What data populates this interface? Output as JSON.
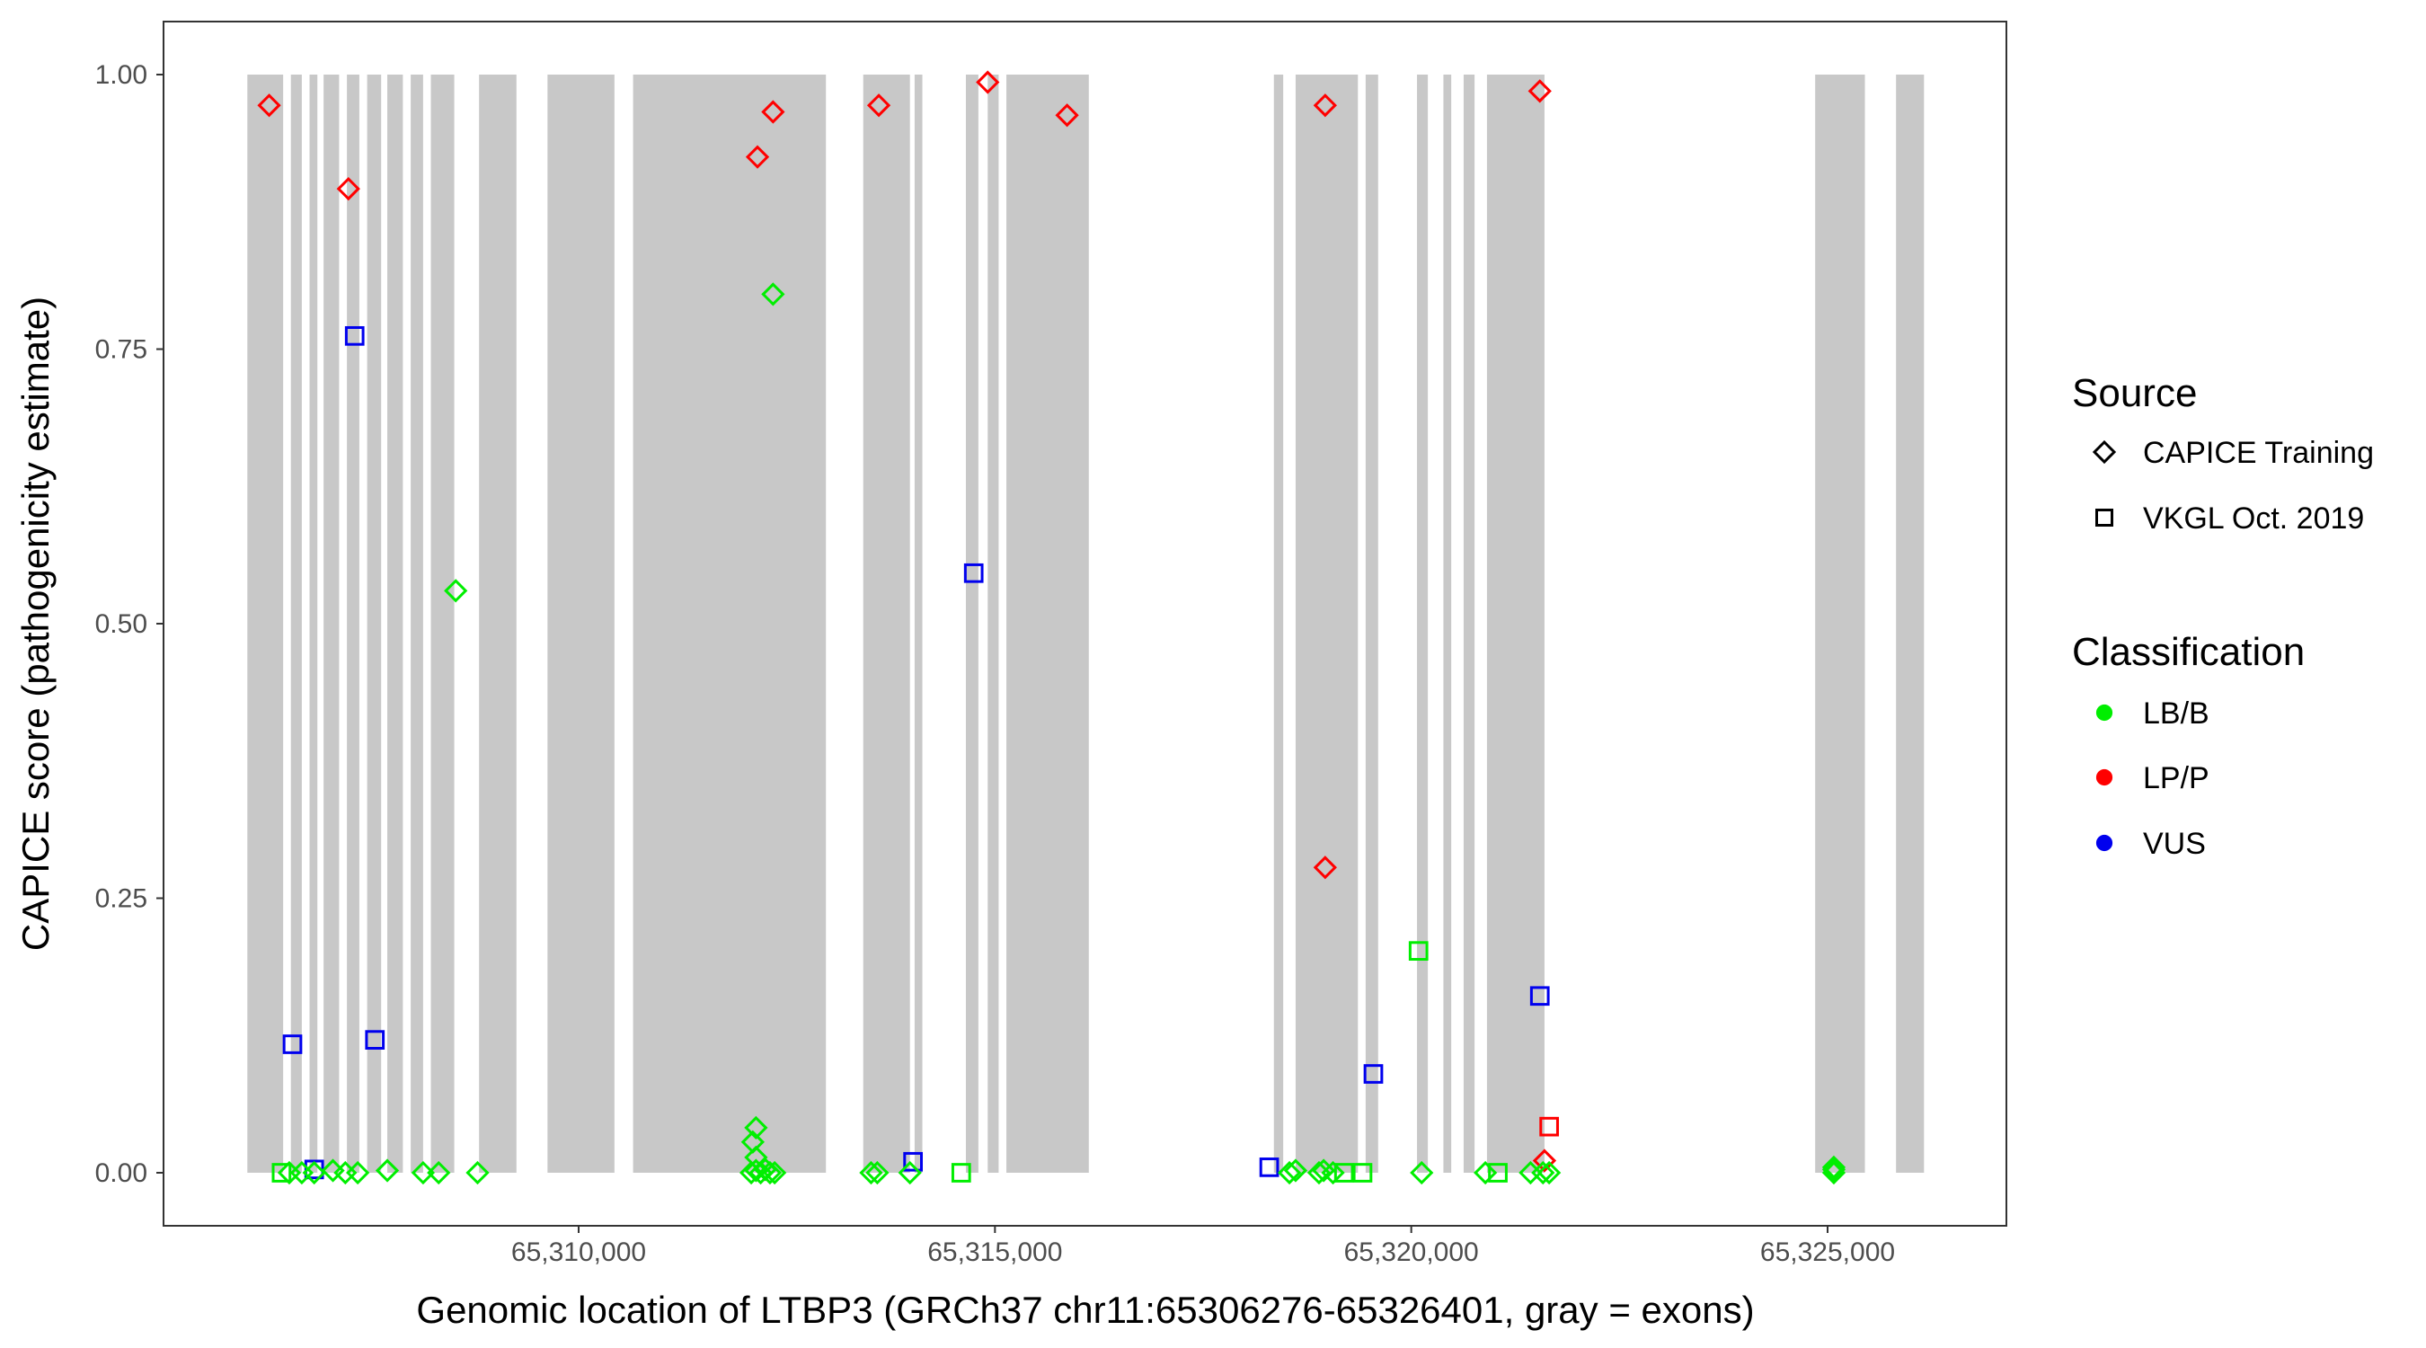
{
  "chart_data": {
    "type": "scatter",
    "title": "",
    "xlabel": "Genomic location of LTBP3 (GRCh37 chr11:65306276-65326401, gray = exons)",
    "ylabel": "CAPICE score (pathogenicity estimate)",
    "xlim": [
      65305000,
      65327100
    ],
    "ylim": [
      -0.05,
      1.05
    ],
    "x_ticks": [
      65310000,
      65315000,
      65320000,
      65325000
    ],
    "x_tick_labels": [
      "65,310,000",
      "65,315,000",
      "65,320,000",
      "65,325,000"
    ],
    "y_ticks": [
      0,
      0.25,
      0.5,
      0.75,
      1.0
    ],
    "y_tick_labels": [
      "0.00",
      "0.25",
      "0.50",
      "0.75",
      "1.00"
    ],
    "grid": false,
    "exon_color": "#c8c8c8",
    "exons": [
      [
        65306021,
        65306451
      ],
      [
        65306544,
        65306675
      ],
      [
        65306768,
        65306862
      ],
      [
        65306937,
        65307123
      ],
      [
        65307217,
        65307366
      ],
      [
        65307460,
        65307628
      ],
      [
        65307702,
        65307889
      ],
      [
        65307983,
        65308132
      ],
      [
        65308225,
        65308506
      ],
      [
        65308804,
        65309253
      ],
      [
        65309626,
        65310430
      ],
      [
        65310654,
        65312970
      ],
      [
        65313418,
        65313979
      ],
      [
        65314035,
        65314128
      ],
      [
        65314651,
        65314801
      ],
      [
        65314913,
        65315044
      ],
      [
        65315137,
        65316127
      ],
      [
        65318350,
        65318462
      ],
      [
        65318611,
        65319359
      ],
      [
        65319452,
        65319602
      ],
      [
        65320069,
        65320199
      ],
      [
        65320386,
        65320480
      ],
      [
        65320629,
        65320760
      ],
      [
        65320909,
        65321600
      ],
      [
        65324851,
        65325448
      ],
      [
        65325822,
        65326158
      ]
    ],
    "legend": {
      "placement": "right",
      "source_title": "Source",
      "source_items": [
        {
          "label": "CAPICE Training",
          "shape": "diamond"
        },
        {
          "label": "VKGL Oct. 2019",
          "shape": "square"
        }
      ],
      "class_title": "Classification",
      "class_items": [
        {
          "label": "LB/B",
          "color": "#00ee00"
        },
        {
          "label": "LP/P",
          "color": "#ff0000"
        },
        {
          "label": "VUS",
          "color": "#0000ee"
        }
      ]
    },
    "points": [
      {
        "x": 65306283,
        "y": 0.972,
        "source": "CAPICE Training",
        "class": "LP/P"
      },
      {
        "x": 65307235,
        "y": 0.896,
        "source": "CAPICE Training",
        "class": "LP/P"
      },
      {
        "x": 65312148,
        "y": 0.925,
        "source": "CAPICE Training",
        "class": "LP/P"
      },
      {
        "x": 65312335,
        "y": 0.966,
        "source": "CAPICE Training",
        "class": "LP/P"
      },
      {
        "x": 65313605,
        "y": 0.972,
        "source": "CAPICE Training",
        "class": "LP/P"
      },
      {
        "x": 65314913,
        "y": 0.993,
        "source": "CAPICE Training",
        "class": "LP/P"
      },
      {
        "x": 65315866,
        "y": 0.963,
        "source": "CAPICE Training",
        "class": "LP/P"
      },
      {
        "x": 65318966,
        "y": 0.972,
        "source": "CAPICE Training",
        "class": "LP/P"
      },
      {
        "x": 65321544,
        "y": 0.985,
        "source": "CAPICE Training",
        "class": "LP/P"
      },
      {
        "x": 65318966,
        "y": 0.278,
        "source": "CAPICE Training",
        "class": "LP/P"
      },
      {
        "x": 65321600,
        "y": 0.011,
        "source": "CAPICE Training",
        "class": "LP/P"
      },
      {
        "x": 65321656,
        "y": 0.042,
        "source": "VKGL Oct. 2019",
        "class": "LP/P"
      },
      {
        "x": 65307310,
        "y": 0.762,
        "source": "VKGL Oct. 2019",
        "class": "VUS"
      },
      {
        "x": 65306563,
        "y": 0.117,
        "source": "VKGL Oct. 2019",
        "class": "VUS"
      },
      {
        "x": 65307553,
        "y": 0.121,
        "source": "VKGL Oct. 2019",
        "class": "VUS"
      },
      {
        "x": 65306824,
        "y": 0.003,
        "source": "VKGL Oct. 2019",
        "class": "VUS"
      },
      {
        "x": 65314745,
        "y": 0.546,
        "source": "VKGL Oct. 2019",
        "class": "VUS"
      },
      {
        "x": 65314016,
        "y": 0.01,
        "source": "VKGL Oct. 2019",
        "class": "VUS"
      },
      {
        "x": 65318294,
        "y": 0.005,
        "source": "VKGL Oct. 2019",
        "class": "VUS"
      },
      {
        "x": 65319545,
        "y": 0.09,
        "source": "VKGL Oct. 2019",
        "class": "VUS"
      },
      {
        "x": 65321544,
        "y": 0.161,
        "source": "VKGL Oct. 2019",
        "class": "VUS"
      },
      {
        "x": 65308524,
        "y": 0.53,
        "source": "CAPICE Training",
        "class": "LB/B"
      },
      {
        "x": 65312335,
        "y": 0.8,
        "source": "CAPICE Training",
        "class": "LB/B"
      },
      {
        "x": 65312130,
        "y": 0.041,
        "source": "CAPICE Training",
        "class": "LB/B"
      },
      {
        "x": 65312092,
        "y": 0.028,
        "source": "CAPICE Training",
        "class": "LB/B"
      },
      {
        "x": 65312130,
        "y": 0.014,
        "source": "CAPICE Training",
        "class": "LB/B"
      },
      {
        "x": 65320087,
        "y": 0.202,
        "source": "VKGL Oct. 2019",
        "class": "LB/B"
      },
      {
        "x": 65306432,
        "y": 0.0,
        "source": "VKGL Oct. 2019",
        "class": "LB/B"
      },
      {
        "x": 65306525,
        "y": 0.0,
        "source": "CAPICE Training",
        "class": "LB/B"
      },
      {
        "x": 65306675,
        "y": 0.0,
        "source": "CAPICE Training",
        "class": "LB/B"
      },
      {
        "x": 65306824,
        "y": 0.0,
        "source": "CAPICE Training",
        "class": "LB/B"
      },
      {
        "x": 65307049,
        "y": 0.002,
        "source": "CAPICE Training",
        "class": "LB/B"
      },
      {
        "x": 65307198,
        "y": 0.0,
        "source": "CAPICE Training",
        "class": "LB/B"
      },
      {
        "x": 65307347,
        "y": 0.0,
        "source": "CAPICE Training",
        "class": "LB/B"
      },
      {
        "x": 65307702,
        "y": 0.002,
        "source": "CAPICE Training",
        "class": "LB/B"
      },
      {
        "x": 65308132,
        "y": 0.0,
        "source": "CAPICE Training",
        "class": "LB/B"
      },
      {
        "x": 65308319,
        "y": 0.0,
        "source": "CAPICE Training",
        "class": "LB/B"
      },
      {
        "x": 65308786,
        "y": 0.0,
        "source": "CAPICE Training",
        "class": "LB/B"
      },
      {
        "x": 65312073,
        "y": 0.0,
        "source": "CAPICE Training",
        "class": "LB/B"
      },
      {
        "x": 65312130,
        "y": 0.002,
        "source": "CAPICE Training",
        "class": "LB/B"
      },
      {
        "x": 65312186,
        "y": 0.0,
        "source": "CAPICE Training",
        "class": "LB/B"
      },
      {
        "x": 65312242,
        "y": 0.003,
        "source": "CAPICE Training",
        "class": "LB/B"
      },
      {
        "x": 65312298,
        "y": 0.0,
        "source": "CAPICE Training",
        "class": "LB/B"
      },
      {
        "x": 65312354,
        "y": 0.0,
        "source": "CAPICE Training",
        "class": "LB/B"
      },
      {
        "x": 65313512,
        "y": 0.0,
        "source": "CAPICE Training",
        "class": "LB/B"
      },
      {
        "x": 65313587,
        "y": 0.0,
        "source": "CAPICE Training",
        "class": "LB/B"
      },
      {
        "x": 65313979,
        "y": 0.0,
        "source": "CAPICE Training",
        "class": "LB/B"
      },
      {
        "x": 65314595,
        "y": 0.0,
        "source": "VKGL Oct. 2019",
        "class": "LB/B"
      },
      {
        "x": 65318537,
        "y": 0.0,
        "source": "CAPICE Training",
        "class": "LB/B"
      },
      {
        "x": 65318611,
        "y": 0.002,
        "source": "CAPICE Training",
        "class": "LB/B"
      },
      {
        "x": 65318892,
        "y": 0.0,
        "source": "CAPICE Training",
        "class": "LB/B"
      },
      {
        "x": 65318948,
        "y": 0.002,
        "source": "CAPICE Training",
        "class": "LB/B"
      },
      {
        "x": 65319060,
        "y": 0.0,
        "source": "CAPICE Training",
        "class": "LB/B"
      },
      {
        "x": 65319191,
        "y": 0.0,
        "source": "VKGL Oct. 2019",
        "class": "LB/B"
      },
      {
        "x": 65319415,
        "y": 0.0,
        "source": "VKGL Oct. 2019",
        "class": "LB/B"
      },
      {
        "x": 65320125,
        "y": 0.0,
        "source": "CAPICE Training",
        "class": "LB/B"
      },
      {
        "x": 65320890,
        "y": 0.0,
        "source": "CAPICE Training",
        "class": "LB/B"
      },
      {
        "x": 65321040,
        "y": 0.0,
        "source": "VKGL Oct. 2019",
        "class": "LB/B"
      },
      {
        "x": 65321432,
        "y": 0.0,
        "source": "CAPICE Training",
        "class": "LB/B"
      },
      {
        "x": 65321582,
        "y": 0.0,
        "source": "CAPICE Training",
        "class": "LB/B"
      },
      {
        "x": 65321656,
        "y": 0.0,
        "source": "CAPICE Training",
        "class": "LB/B"
      },
      {
        "x": 65325075,
        "y": 0.0,
        "source": "CAPICE Training",
        "class": "LB/B"
      },
      {
        "x": 65325075,
        "y": 0.003,
        "source": "CAPICE Training",
        "class": "LB/B"
      },
      {
        "x": 65325075,
        "y": 0.005,
        "source": "CAPICE Training",
        "class": "LB/B"
      }
    ]
  }
}
